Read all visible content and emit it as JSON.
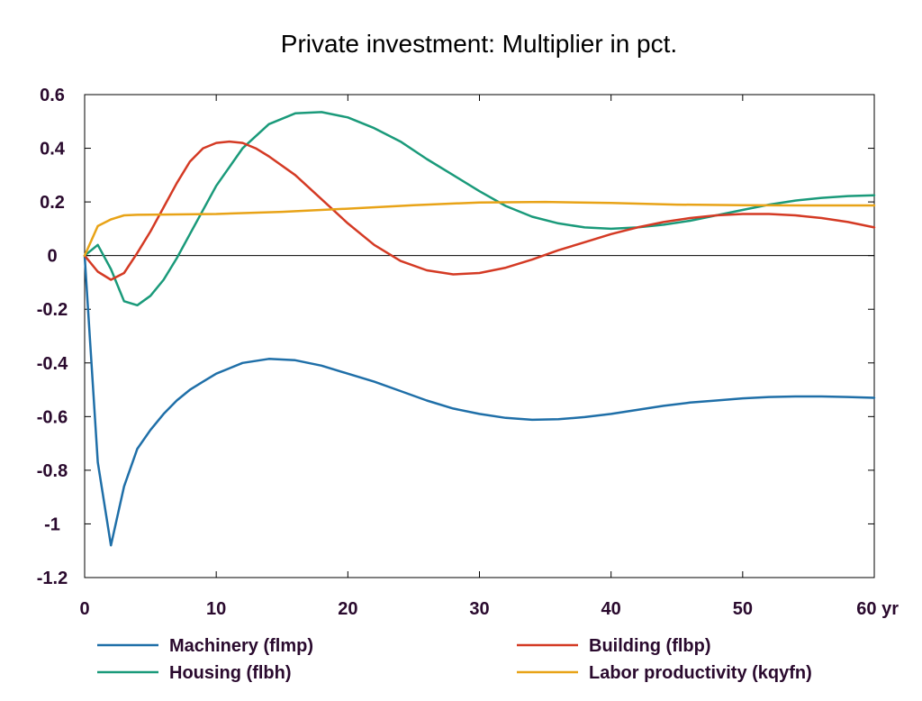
{
  "chart_data": {
    "type": "line",
    "title": "Private investment: Multiplier in pct.",
    "xlabel": "",
    "ylabel": "",
    "xlim": [
      0,
      60
    ],
    "ylim": [
      -1.2,
      0.6
    ],
    "x_ticks": [
      0,
      10,
      20,
      30,
      40,
      50,
      60
    ],
    "x_tick_labels": [
      "0",
      "10",
      "20",
      "30",
      "40",
      "50",
      "60 yr"
    ],
    "y_ticks": [
      0.6,
      0.4,
      0.2,
      0,
      -0.2,
      -0.4,
      -0.6,
      -0.8,
      -1,
      -1.2
    ],
    "y_tick_labels": [
      "0.6",
      "0.4",
      "0.2",
      "0",
      "-0.2",
      "-0.4",
      "-0.6",
      "-0.8",
      "-1",
      "-1.2"
    ],
    "grid": false,
    "zero_line": true,
    "legend_position": "bottom",
    "series": [
      {
        "name": "Machinery (flmp)",
        "color": "#1f6fa8",
        "x": [
          0,
          1,
          2,
          3,
          4,
          5,
          6,
          7,
          8,
          9,
          10,
          12,
          14,
          16,
          18,
          20,
          22,
          24,
          26,
          28,
          30,
          32,
          34,
          36,
          38,
          40,
          42,
          44,
          46,
          48,
          50,
          52,
          54,
          56,
          58,
          60
        ],
        "y": [
          0,
          -0.77,
          -1.08,
          -0.86,
          -0.72,
          -0.65,
          -0.59,
          -0.54,
          -0.5,
          -0.47,
          -0.44,
          -0.4,
          -0.385,
          -0.39,
          -0.41,
          -0.44,
          -0.47,
          -0.505,
          -0.54,
          -0.57,
          -0.59,
          -0.605,
          -0.612,
          -0.61,
          -0.602,
          -0.59,
          -0.575,
          -0.56,
          -0.548,
          -0.54,
          -0.532,
          -0.527,
          -0.525,
          -0.525,
          -0.527,
          -0.53
        ]
      },
      {
        "name": "Housing (flbh)",
        "color": "#1a9a7a",
        "x": [
          0,
          1,
          2,
          3,
          4,
          5,
          6,
          7,
          8,
          10,
          12,
          14,
          16,
          18,
          20,
          22,
          24,
          26,
          28,
          30,
          32,
          34,
          36,
          38,
          40,
          42,
          44,
          46,
          48,
          50,
          52,
          54,
          56,
          58,
          60
        ],
        "y": [
          0,
          0.04,
          -0.05,
          -0.17,
          -0.185,
          -0.15,
          -0.09,
          -0.01,
          0.08,
          0.26,
          0.4,
          0.49,
          0.53,
          0.535,
          0.515,
          0.475,
          0.425,
          0.36,
          0.3,
          0.24,
          0.185,
          0.145,
          0.12,
          0.105,
          0.1,
          0.105,
          0.115,
          0.13,
          0.15,
          0.17,
          0.19,
          0.205,
          0.215,
          0.222,
          0.225
        ]
      },
      {
        "name": "Building (flbp)",
        "color": "#d43a24",
        "x": [
          0,
          1,
          2,
          3,
          4,
          5,
          6,
          7,
          8,
          9,
          10,
          11,
          12,
          13,
          14,
          16,
          18,
          20,
          22,
          24,
          26,
          28,
          30,
          32,
          34,
          36,
          38,
          40,
          42,
          44,
          46,
          48,
          50,
          52,
          54,
          56,
          58,
          60
        ],
        "y": [
          0,
          -0.06,
          -0.09,
          -0.065,
          0.01,
          0.09,
          0.18,
          0.27,
          0.35,
          0.4,
          0.42,
          0.425,
          0.42,
          0.4,
          0.37,
          0.3,
          0.21,
          0.12,
          0.04,
          -0.02,
          -0.055,
          -0.07,
          -0.065,
          -0.045,
          -0.015,
          0.02,
          0.05,
          0.08,
          0.105,
          0.125,
          0.14,
          0.15,
          0.155,
          0.155,
          0.15,
          0.14,
          0.125,
          0.105
        ]
      },
      {
        "name": "Labor productivity (kqyfn)",
        "color": "#e8a317",
        "x": [
          0,
          1,
          2,
          3,
          4,
          6,
          10,
          15,
          20,
          25,
          30,
          35,
          40,
          45,
          50,
          55,
          60
        ],
        "y": [
          0,
          0.11,
          0.135,
          0.15,
          0.152,
          0.153,
          0.155,
          0.163,
          0.175,
          0.188,
          0.198,
          0.2,
          0.196,
          0.19,
          0.188,
          0.187,
          0.187
        ]
      }
    ]
  }
}
